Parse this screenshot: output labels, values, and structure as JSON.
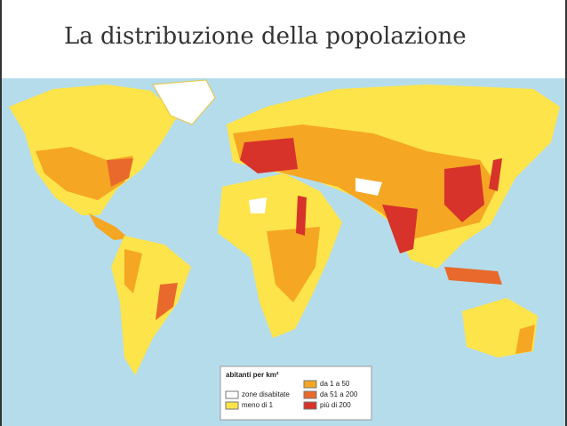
{
  "title": "La distribuzione della popolazione",
  "legend": {
    "title": "abitanti per km²",
    "items": [
      {
        "label": "zone disabitate",
        "color": "#ffffff"
      },
      {
        "label": "meno di 1",
        "color": "#fde44a"
      },
      {
        "label": "da 1 a 50",
        "color": "#f5a623"
      },
      {
        "label": "da 51 a 200",
        "color": "#e8692b"
      },
      {
        "label": "più di 200",
        "color": "#d7332a"
      }
    ]
  }
}
